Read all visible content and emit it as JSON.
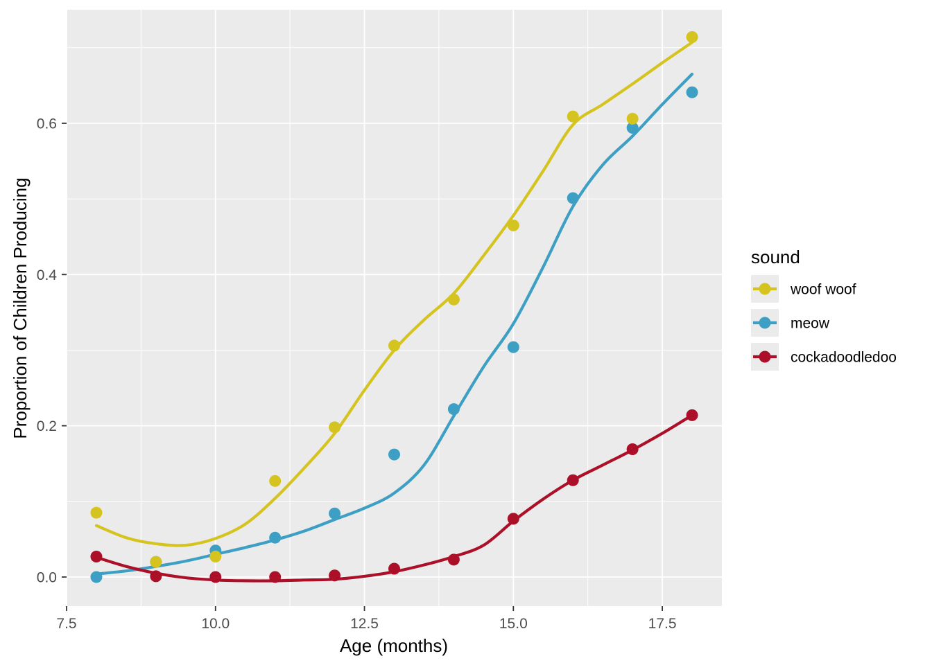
{
  "chart_data": {
    "type": "scatter",
    "title": "",
    "xlabel": "Age (months)",
    "ylabel": "Proportion of Children Producing",
    "legend_title": "sound",
    "legend_position": "right",
    "grid": true,
    "xlim": [
      7.5,
      18.5
    ],
    "ylim": [
      -0.0385,
      0.7502
    ],
    "x_ticks": {
      "values": [
        7.5,
        10.0,
        12.5,
        15.0,
        17.5
      ],
      "labels": [
        "7.5",
        "10.0",
        "12.5",
        "15.0",
        "17.5"
      ]
    },
    "y_ticks": {
      "values": [
        0.0,
        0.2,
        0.4,
        0.6
      ],
      "labels": [
        "0.0",
        "0.2",
        "0.4",
        "0.6"
      ]
    },
    "x_minor": [
      8.75,
      11.25,
      13.75,
      16.25
    ],
    "y_minor": [
      0.1,
      0.3,
      0.5,
      0.7
    ],
    "x": [
      8,
      9,
      10,
      11,
      12,
      13,
      14,
      15,
      16,
      17,
      18
    ],
    "series": [
      {
        "name": "woof woof",
        "color": "#D5C41F",
        "values": [
          0.085,
          0.02,
          0.027,
          0.127,
          0.198,
          0.306,
          0.367,
          0.465,
          0.609,
          0.606,
          0.714
        ],
        "smooth": [
          [
            8,
            0.068
          ],
          [
            8.5,
            0.052
          ],
          [
            9,
            0.044
          ],
          [
            9.5,
            0.042
          ],
          [
            10,
            0.051
          ],
          [
            10.5,
            0.07
          ],
          [
            11,
            0.104
          ],
          [
            11.5,
            0.145
          ],
          [
            12,
            0.19
          ],
          [
            12.5,
            0.247
          ],
          [
            13,
            0.3
          ],
          [
            13.5,
            0.34
          ],
          [
            14,
            0.375
          ],
          [
            14.5,
            0.425
          ],
          [
            15,
            0.478
          ],
          [
            15.5,
            0.537
          ],
          [
            16,
            0.598
          ],
          [
            16.5,
            0.625
          ],
          [
            17,
            0.652
          ],
          [
            17.5,
            0.68
          ],
          [
            18,
            0.707
          ]
        ]
      },
      {
        "name": "meow",
        "color": "#3D9FC3",
        "values": [
          0.0,
          0.02,
          0.035,
          0.052,
          0.084,
          0.162,
          0.222,
          0.304,
          0.501,
          0.594,
          0.641
        ],
        "smooth": [
          [
            8,
            0.004
          ],
          [
            8.5,
            0.008
          ],
          [
            9,
            0.014
          ],
          [
            9.5,
            0.021
          ],
          [
            10,
            0.03
          ],
          [
            10.5,
            0.039
          ],
          [
            11,
            0.049
          ],
          [
            11.5,
            0.061
          ],
          [
            12,
            0.076
          ],
          [
            12.5,
            0.091
          ],
          [
            13,
            0.111
          ],
          [
            13.5,
            0.148
          ],
          [
            14,
            0.213
          ],
          [
            14.5,
            0.278
          ],
          [
            15,
            0.335
          ],
          [
            15.5,
            0.41
          ],
          [
            16,
            0.49
          ],
          [
            16.5,
            0.545
          ],
          [
            17,
            0.583
          ],
          [
            17.5,
            0.625
          ],
          [
            18,
            0.665
          ]
        ]
      },
      {
        "name": "cockadoodledoo",
        "color": "#AC1028",
        "values": [
          0.027,
          0.001,
          0.0,
          0.0,
          0.002,
          0.011,
          0.023,
          0.077,
          0.128,
          0.169,
          0.214
        ],
        "smooth": [
          [
            8,
            0.026
          ],
          [
            8.5,
            0.014
          ],
          [
            9,
            0.005
          ],
          [
            9.5,
            -0.001
          ],
          [
            10,
            -0.004
          ],
          [
            10.5,
            -0.005
          ],
          [
            11,
            -0.005
          ],
          [
            11.5,
            -0.004
          ],
          [
            12,
            -0.003
          ],
          [
            12.5,
            0.001
          ],
          [
            13,
            0.007
          ],
          [
            13.5,
            0.016
          ],
          [
            14,
            0.027
          ],
          [
            14.5,
            0.042
          ],
          [
            15,
            0.074
          ],
          [
            15.5,
            0.103
          ],
          [
            16,
            0.128
          ],
          [
            16.5,
            0.148
          ],
          [
            17,
            0.168
          ],
          [
            17.5,
            0.19
          ],
          [
            18,
            0.214
          ]
        ]
      }
    ],
    "draw_order": [
      1,
      0,
      2
    ],
    "colors": {
      "panel_bg": "#EBEBEB",
      "grid": "#FFFFFF",
      "tick_label": "#4D4D4D",
      "tick_mark": "#333333",
      "axis_title": "#000000",
      "legend_key_bg": "#EBEBEB"
    }
  }
}
